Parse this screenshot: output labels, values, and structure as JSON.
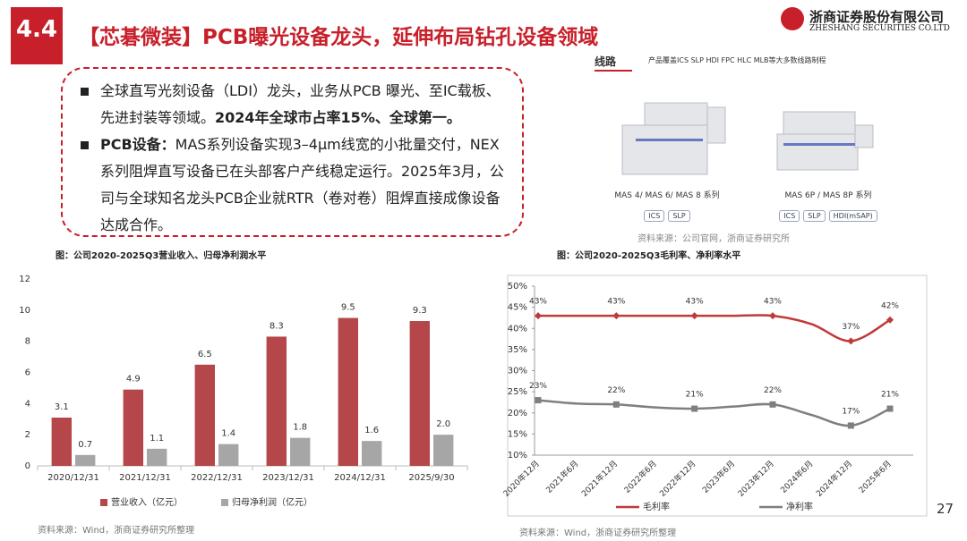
{
  "header": {
    "section": "4.4",
    "title": "【芯碁微装】PCB曝光设备龙头，延伸布局钻孔设备领域",
    "company": "浙商证券股份有限公司",
    "company_en": "ZHESHANG SECURITIES CO.LTD"
  },
  "bullets": [
    {
      "text": "全球直写光刻设备（LDI）龙头，业务从PCB 曝光、至IC载板、先进封装等领域。",
      "highlight": "2024年全球市占率15%、全球第一。"
    },
    {
      "label": "PCB设备：",
      "text": "MAS系列设备实现3–4μm线宽的小批量交付，NEX系列阻焊直写设备已在头部客户产线稳定运行。2025年3月，公司与全球知名龙头PCB企业就RTR（卷对卷）阻焊直接成像设备达成合作。"
    }
  ],
  "products": {
    "tab": "线路",
    "desc": "产品覆盖ICS SLP HDI FPC HLC MLB等大多数线路制程",
    "items": [
      {
        "name": "MAS 4/ MAS 6/ MAS 8 系列",
        "tags": [
          "ICS",
          "SLP"
        ]
      },
      {
        "name": "MAS 6P / MAS 8P 系列",
        "tags": [
          "ICS",
          "SLP",
          "HDI(mSAP)"
        ]
      }
    ],
    "source": "资料来源：公司官网，浙商证券研究所"
  },
  "chart_data": [
    {
      "type": "bar",
      "title": "图：公司2020-2025Q3营业收入、归母净利润水平",
      "categories": [
        "2020/12/31",
        "2021/12/31",
        "2022/12/31",
        "2023/12/31",
        "2024/12/31",
        "2025/9/30"
      ],
      "series": [
        {
          "name": "营业收入（亿元）",
          "color": "#b5474a",
          "values": [
            3.1,
            4.9,
            6.5,
            8.3,
            9.5,
            9.3
          ]
        },
        {
          "name": "归母净利润（亿元）",
          "color": "#a6a6a6",
          "values": [
            0.7,
            1.1,
            1.4,
            1.8,
            1.6,
            2.0
          ],
          "value_labels": [
            "0.7",
            "1.1",
            "1.4",
            "1.8",
            "1.6",
            "2.0"
          ]
        }
      ],
      "ylim": [
        0,
        12
      ],
      "yticks": [
        0,
        2,
        4,
        6,
        8,
        10,
        12
      ],
      "source": "资料来源：Wind，浙商证券研究所整理"
    },
    {
      "type": "line",
      "title": "图：公司2020-2025Q3毛利率、净利率水平",
      "categories": [
        "2020年12月",
        "2021年6月",
        "2021年12月",
        "2022年6月",
        "2022年12月",
        "2023年6月",
        "2023年12月",
        "2024年6月",
        "2024年12月",
        "2025年6月"
      ],
      "series": [
        {
          "name": "毛利率",
          "color": "#c0393b",
          "values": [
            43,
            43,
            43,
            43,
            43,
            43,
            43,
            41,
            37,
            42
          ],
          "value_labels": [
            "43%",
            null,
            "43%",
            null,
            "43%",
            null,
            "43%",
            null,
            "37%",
            "42%"
          ]
        },
        {
          "name": "净利率",
          "color": "#7f7f7f",
          "values": [
            23,
            22.2,
            22,
            21.3,
            21,
            21.5,
            22,
            19.5,
            17,
            21
          ],
          "value_labels": [
            "23%",
            null,
            "22%",
            null,
            "21%",
            null,
            "22%",
            null,
            "17%",
            "21%"
          ]
        }
      ],
      "ylim": [
        10,
        50
      ],
      "yticks": [
        {
          "value": 10,
          "label": "10%"
        },
        {
          "value": 15,
          "label": "15%"
        },
        {
          "value": 20,
          "label": "20%"
        },
        {
          "value": 25,
          "label": "25%"
        },
        {
          "value": 30,
          "label": "30%"
        },
        {
          "value": 35,
          "label": "35%"
        },
        {
          "value": 40,
          "label": "40%"
        },
        {
          "value": 45,
          "label": "45%"
        },
        {
          "value": 50,
          "label": "50%"
        }
      ],
      "source": "资料来源：Wind，浙商证券研究所整理"
    }
  ],
  "page_number": "27"
}
